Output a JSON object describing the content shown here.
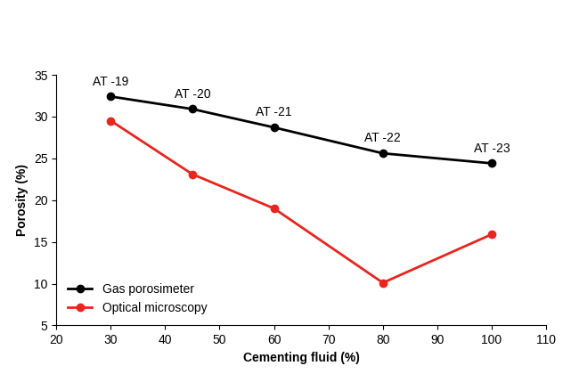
{
  "chart_data": {
    "type": "line",
    "x_label": "Cementing fluid (%)",
    "y_label": "Porosity (%)",
    "x": [
      30,
      45,
      60,
      80,
      100
    ],
    "series": [
      {
        "name": "Gas porosimeter",
        "color": "#000000",
        "marker": "o",
        "line_style": "solid",
        "values": [
          32.4,
          30.9,
          28.7,
          25.6,
          24.4
        ],
        "point_labels": [
          "AT -19",
          "AT -20",
          "AT -21",
          "AT -22",
          "AT -23"
        ]
      },
      {
        "name": "Optical microscopy",
        "color": "#e8251e",
        "marker": "o",
        "line_style": "solid",
        "values": [
          29.5,
          23.1,
          19.0,
          10.1,
          15.9
        ]
      }
    ],
    "xlim": [
      20,
      110
    ],
    "xticks": [
      20,
      30,
      40,
      50,
      60,
      70,
      80,
      90,
      100,
      110
    ],
    "ylim": [
      5,
      35
    ],
    "yticks": [
      5,
      10,
      15,
      20,
      25,
      30,
      35
    ],
    "grid": false,
    "legend": "lower left"
  }
}
